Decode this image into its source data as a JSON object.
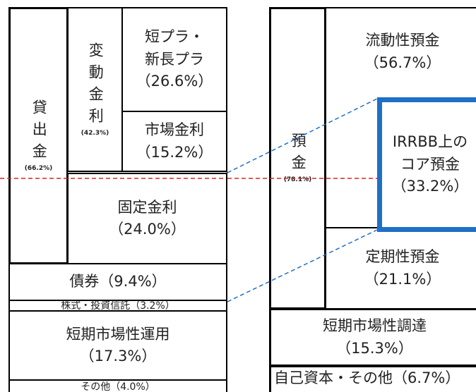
{
  "assets": {
    "loans": {
      "label": "貸出金",
      "share": "(66.2%)"
    },
    "floating_rate": {
      "label": "変動金利",
      "share": "(42.3%)"
    },
    "prime_rate": {
      "label": "短プラ・\n新長プラ",
      "share": "（26.6%）"
    },
    "market_rate": {
      "label": "市場金利",
      "share": "（15.2%）"
    },
    "fixed_rate": {
      "label": "固定金利",
      "share": "（24.0%）"
    },
    "bonds": {
      "label": "債券（9.4%）"
    },
    "stocks_funds": {
      "label": "株式・投資信託（3.2%）"
    },
    "short_term_investment": {
      "label": "短期市場性運用",
      "share": "（17.3%）"
    },
    "other": {
      "label": "その他（4.0%）"
    }
  },
  "liabilities": {
    "deposits": {
      "label": "預金",
      "share": "(78.1%)"
    },
    "liquid_deposits": {
      "label": "流動性預金",
      "share": "（56.7%）"
    },
    "core_deposits": {
      "label": "IRRBB上の\nコア預金",
      "share": "（33.2%）"
    },
    "time_deposits": {
      "label": "定期性預金",
      "share": "（21.1%）"
    },
    "short_term_funding": {
      "label": "短期市場性調達",
      "share": "（15.3%）"
    },
    "equity_other": {
      "label": "自己資本・その他（6.7%）"
    }
  }
}
